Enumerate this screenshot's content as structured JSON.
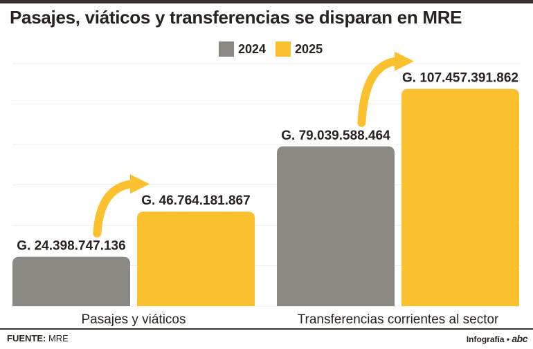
{
  "title": "Pasajes, viáticos y transferencias se disparan en MRE",
  "legend": [
    {
      "label": "2024",
      "color": "#8c8985"
    },
    {
      "label": "2025",
      "color": "#fbc02d"
    }
  ],
  "chart_data": {
    "type": "bar",
    "title": "Pasajes, viáticos y transferencias se disparan en MRE",
    "categories": [
      "Pasajes y viáticos",
      "Transferencias corrientes al sector"
    ],
    "series": [
      {
        "name": "2024",
        "color": "#8c8985",
        "values": [
          24398747136,
          79039588464
        ],
        "labels": [
          "G. 24.398.747.136",
          "G. 79.039.588.464"
        ]
      },
      {
        "name": "2025",
        "color": "#fbc02d",
        "values": [
          46764181867,
          107457391862
        ],
        "labels": [
          "G. 46.764.181.867",
          "G. 107.457.391.862"
        ]
      }
    ],
    "ylim": [
      0,
      120000000000
    ],
    "grid": true,
    "xlabel": "",
    "ylabel": "",
    "legend_position": "top-center"
  },
  "footer": {
    "source_label": "FUENTE:",
    "source_value": "MRE",
    "credit": "Infografía •",
    "logo": "abc"
  }
}
